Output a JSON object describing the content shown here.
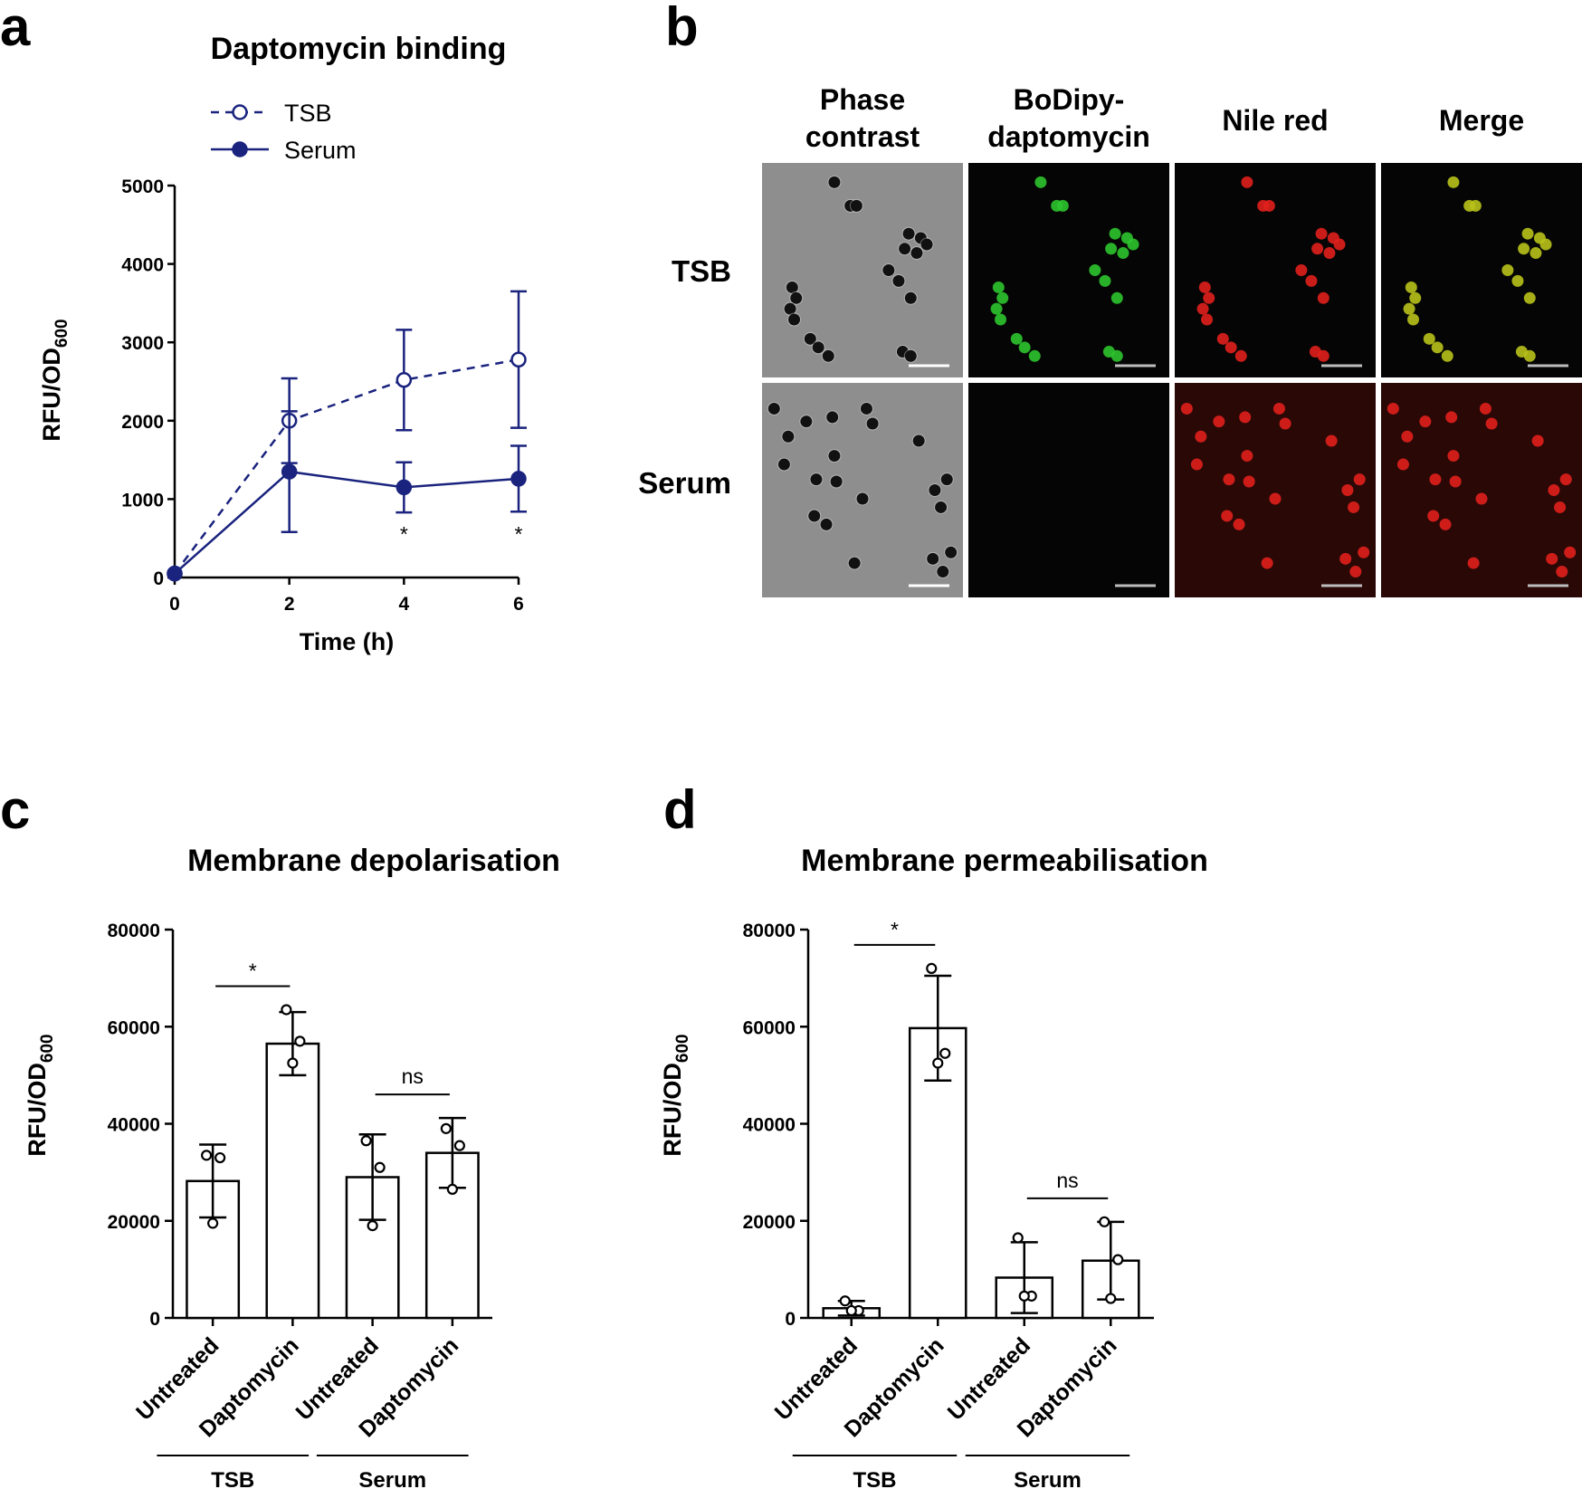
{
  "panels": {
    "a": "a",
    "b": "b",
    "c": "c",
    "d": "d"
  },
  "chart_data": [
    {
      "panel": "a",
      "type": "line",
      "title": "Daptomycin binding",
      "xlabel": "Time (h)",
      "ylabel": "RFU/OD",
      "ylabel_sub": "600",
      "x": [
        0,
        2,
        4,
        6
      ],
      "xlim": [
        0,
        6
      ],
      "ylim": [
        0,
        5000
      ],
      "xticks": [
        0,
        2,
        4,
        6
      ],
      "yticks": [
        0,
        1000,
        2000,
        3000,
        4000,
        5000
      ],
      "legend_position": "top-left",
      "grid": false,
      "series": [
        {
          "name": "TSB",
          "values": [
            50,
            2000,
            2520,
            2780
          ],
          "err": [
            0,
            540,
            640,
            870
          ],
          "style": "dashed-open"
        },
        {
          "name": "Serum",
          "values": [
            50,
            1350,
            1150,
            1260
          ],
          "err": [
            0,
            770,
            320,
            420
          ],
          "style": "solid-filled"
        }
      ],
      "annotations": [
        {
          "x": 4,
          "text": "*"
        },
        {
          "x": 6,
          "text": "*"
        }
      ],
      "color": "#1a237e"
    },
    {
      "panel": "c",
      "type": "bar",
      "title": "Membrane depolarisation",
      "ylabel": "RFU/OD",
      "ylabel_sub": "600",
      "categories": [
        "Untreated",
        "Daptomycin",
        "Untreated",
        "Daptomycin"
      ],
      "groups": [
        {
          "label": "TSB",
          "span": [
            0,
            1
          ]
        },
        {
          "label": "Serum",
          "span": [
            2,
            3
          ]
        }
      ],
      "values": [
        28200,
        56500,
        29000,
        34000
      ],
      "err": [
        7500,
        6500,
        8800,
        7200
      ],
      "points": [
        [
          33500,
          33000,
          19500
        ],
        [
          63500,
          57000,
          52500
        ],
        [
          36500,
          31000,
          19000
        ],
        [
          39000,
          35500,
          26500
        ]
      ],
      "ylim": [
        0,
        80000
      ],
      "yticks": [
        0,
        20000,
        40000,
        60000,
        80000
      ],
      "significance": [
        {
          "between": [
            0,
            1
          ],
          "text": "*"
        },
        {
          "between": [
            2,
            3
          ],
          "text": "ns"
        }
      ]
    },
    {
      "panel": "d",
      "type": "bar",
      "title": "Membrane permeabilisation",
      "ylabel": "RFU/OD",
      "ylabel_sub": "600",
      "categories": [
        "Untreated",
        "Daptomycin",
        "Untreated",
        "Daptomycin"
      ],
      "groups": [
        {
          "label": "TSB",
          "span": [
            0,
            1
          ]
        },
        {
          "label": "Serum",
          "span": [
            2,
            3
          ]
        }
      ],
      "values": [
        2000,
        59700,
        8300,
        11800
      ],
      "err": [
        1500,
        10800,
        7300,
        8000
      ],
      "points": [
        [
          3500,
          1500,
          1500
        ],
        [
          72000,
          54500,
          52500
        ],
        [
          16500,
          4500,
          4500
        ],
        [
          19800,
          12000,
          4000
        ]
      ],
      "ylim": [
        0,
        80000
      ],
      "yticks": [
        0,
        20000,
        40000,
        60000,
        80000
      ],
      "significance": [
        {
          "between": [
            0,
            1
          ],
          "text": "*"
        },
        {
          "between": [
            2,
            3
          ],
          "text": "ns"
        }
      ]
    }
  ],
  "microscopy": {
    "columns": [
      "Phase contrast",
      "BoDipy-daptomycin",
      "Nile red",
      "Merge"
    ],
    "column_lines": [
      [
        "Phase",
        "contrast"
      ],
      [
        "BoDipy-",
        "daptomycin"
      ],
      [
        "Nile red"
      ],
      [
        "Merge"
      ]
    ],
    "rows": [
      "TSB",
      "Serum"
    ],
    "channel_colors": {
      "phase": "#8a8a8a",
      "green": "#2ec42e",
      "red": "#e0201c",
      "merge": "#b8c21a"
    }
  }
}
